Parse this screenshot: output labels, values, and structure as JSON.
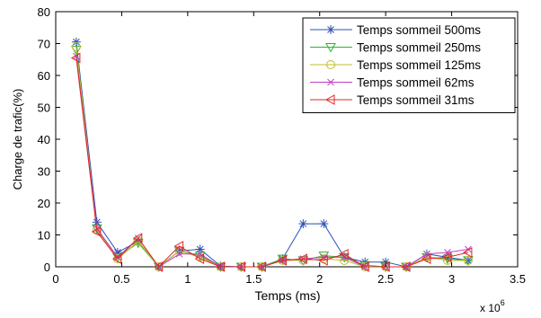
{
  "chart_data": {
    "type": "line",
    "title": "",
    "xlabel": "Temps (ms)",
    "ylabel": "Charge de trafic(%)",
    "x_multiplier_label": "x 10",
    "x_multiplier_exponent": "6",
    "xlim": [
      0,
      3.5
    ],
    "ylim": [
      0,
      80
    ],
    "x_scale_factor": 1000000,
    "xticks": [
      0,
      0.5,
      1,
      1.5,
      2,
      2.5,
      3,
      3.5
    ],
    "xtick_labels": [
      "0",
      "0.5",
      "1",
      "1.5",
      "2",
      "2.5",
      "3",
      "3.5"
    ],
    "yticks": [
      0,
      10,
      20,
      30,
      40,
      50,
      60,
      70,
      80
    ],
    "ytick_labels": [
      "0",
      "10",
      "20",
      "30",
      "40",
      "50",
      "60",
      "70",
      "80"
    ],
    "grid": false,
    "legend_position": "top-right",
    "x": [
      0.156,
      0.312,
      0.469,
      0.625,
      0.781,
      0.937,
      1.094,
      1.25,
      1.406,
      1.562,
      1.719,
      1.875,
      2.031,
      2.187,
      2.344,
      2.5,
      2.656,
      2.812,
      2.969,
      3.125
    ],
    "series": [
      {
        "name": "Temps sommeil 500ms",
        "color": "#2A4FB5",
        "marker": "star",
        "values": [
          70.5,
          14,
          4.5,
          8,
          0,
          5,
          5.5,
          0.2,
          0,
          0,
          2.5,
          13.5,
          13.5,
          3,
          1.5,
          1.5,
          0,
          4,
          3,
          2
        ]
      },
      {
        "name": "Temps sommeil 250ms",
        "color": "#2FB32F",
        "marker": "triangle-down",
        "values": [
          68,
          12,
          3,
          7.5,
          0,
          5,
          3.5,
          0,
          0,
          0,
          2.5,
          2,
          3.5,
          3,
          0.5,
          0,
          0,
          3,
          2.5,
          2
        ]
      },
      {
        "name": "Temps sommeil 125ms",
        "color": "#BDBD2A",
        "marker": "circle",
        "values": [
          69,
          11.5,
          2.5,
          8,
          0,
          5,
          3,
          0,
          0,
          0,
          2,
          2,
          2.5,
          2,
          0,
          0,
          0,
          3,
          2,
          2
        ]
      },
      {
        "name": "Temps sommeil 62ms",
        "color": "#C040C0",
        "marker": "x",
        "values": [
          66,
          12,
          3,
          9,
          0,
          4,
          4,
          0,
          0,
          0,
          2,
          2.5,
          3,
          3,
          0,
          0,
          0,
          4,
          4.5,
          5.5
        ]
      },
      {
        "name": "Temps sommeil 31ms",
        "color": "#E02828",
        "marker": "triangle-left",
        "values": [
          65.5,
          11,
          2.5,
          9,
          0,
          6.5,
          2.5,
          0,
          0,
          0,
          2,
          2.5,
          2,
          4,
          0,
          0,
          0,
          2.5,
          3,
          4.5
        ]
      }
    ]
  }
}
